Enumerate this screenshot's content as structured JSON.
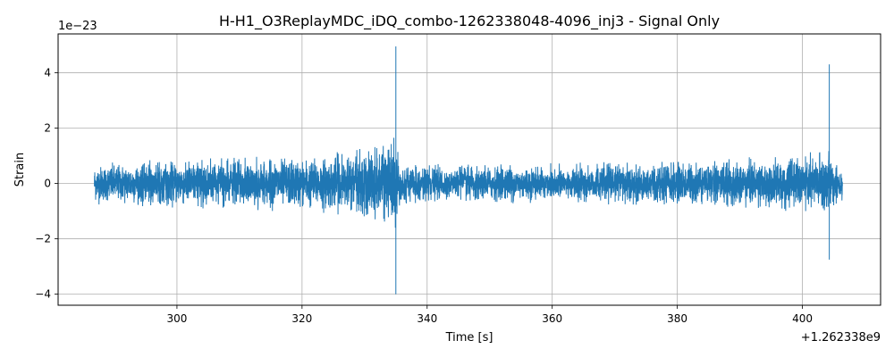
{
  "chart_data": {
    "type": "line",
    "title": "H-H1_O3ReplayMDC_iDQ_combo-1262338048-4096_inj3 - Signal Only",
    "xlabel": "Time [s]",
    "ylabel": "Strain",
    "x_offset_label": "+1.262338e9",
    "y_scale_label": "1e−23",
    "x_ticks": [
      300,
      320,
      340,
      360,
      380,
      400
    ],
    "x_tick_labels": [
      "300",
      "320",
      "340",
      "360",
      "380",
      "400"
    ],
    "y_ticks": [
      -4,
      -2,
      0,
      2,
      4
    ],
    "y_tick_labels": [
      "−4",
      "−2",
      "0",
      "2",
      "4"
    ],
    "xlim": [
      281,
      412.5
    ],
    "ylim": [
      -4.4,
      5.4
    ],
    "grid": true,
    "series_color": "#1f77b4",
    "series": [
      {
        "x_range": [
          286.8,
          406.4
        ],
        "envelope_x": [
          286.8,
          290,
          295,
          300,
          305,
          310,
          315,
          320,
          325,
          328,
          331,
          333,
          334.5,
          335.1,
          335.4,
          336,
          340,
          345,
          350,
          355,
          360,
          365,
          370,
          375,
          380,
          385,
          390,
          395,
          400,
          402,
          403.5,
          404.3,
          404.6,
          405.5,
          406.4
        ],
        "envelope_y": [
          0.75,
          0.8,
          0.85,
          0.9,
          0.95,
          0.95,
          1.0,
          1.0,
          1.1,
          1.25,
          1.4,
          1.5,
          1.7,
          1.85,
          0.95,
          0.75,
          0.7,
          0.7,
          0.72,
          0.72,
          0.75,
          0.75,
          0.78,
          0.8,
          0.85,
          0.9,
          0.95,
          1.0,
          1.05,
          1.2,
          1.4,
          1.6,
          0.85,
          0.8,
          0.7
        ],
        "spikes": [
          {
            "x": 335.0,
            "min": -4.0,
            "max": 4.95
          },
          {
            "x": 404.3,
            "min": -2.75,
            "max": 4.3
          }
        ]
      }
    ]
  }
}
